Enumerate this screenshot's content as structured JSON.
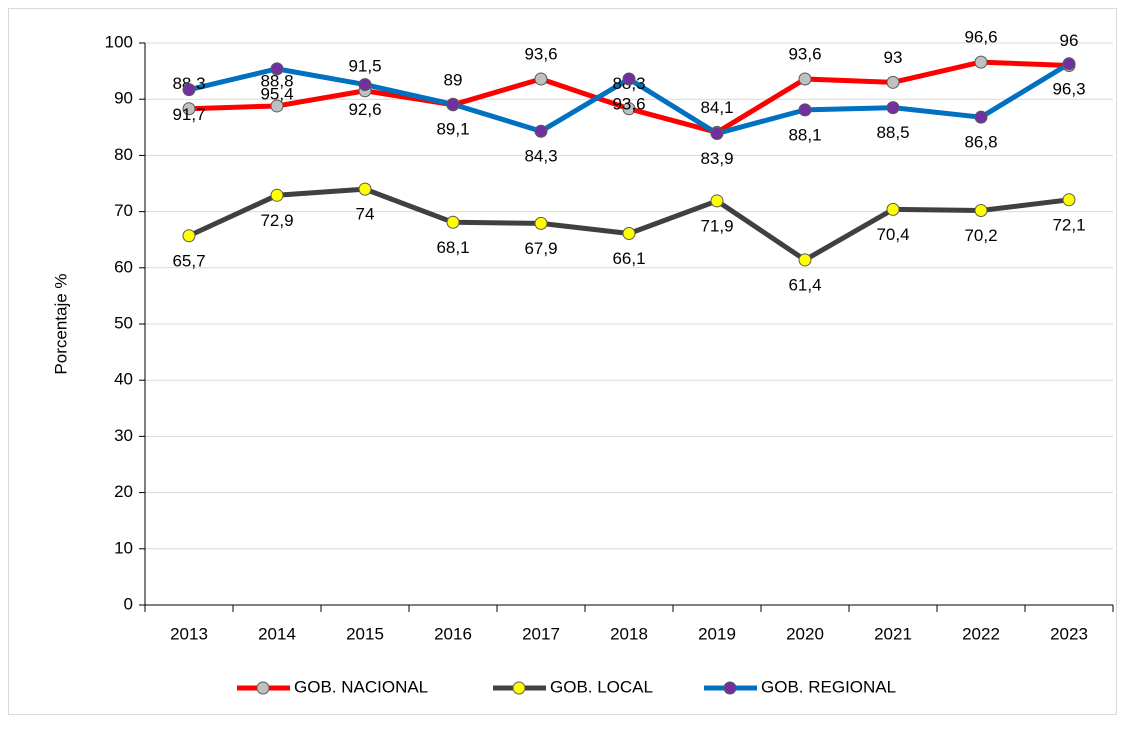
{
  "chart_data": {
    "type": "line",
    "y_label": "Porcentaje %",
    "categories": [
      "2013",
      "2014",
      "2015",
      "2016",
      "2017",
      "2018",
      "2019",
      "2020",
      "2021",
      "2022",
      "2023"
    ],
    "series": [
      {
        "name": "GOB. NACIONAL",
        "color": "#ff0000",
        "marker_color": "#c0c0c0",
        "values": [
          88.3,
          88.8,
          91.5,
          89,
          93.6,
          88.3,
          84.1,
          93.6,
          93,
          96.6,
          96
        ],
        "value_labels": [
          "88,3",
          "88,8",
          "91,5",
          "89",
          "93,6",
          "88,3",
          "84,1",
          "93,6",
          "93",
          "96,6",
          "96"
        ]
      },
      {
        "name": "GOB. LOCAL",
        "color": "#404040",
        "marker_color": "#ffff00",
        "values": [
          65.7,
          72.9,
          74,
          68.1,
          67.9,
          66.1,
          71.9,
          61.4,
          70.4,
          70.2,
          72.1
        ],
        "value_labels": [
          "65,7",
          "72,9",
          "74",
          "68,1",
          "67,9",
          "66,1",
          "71,9",
          "61,4",
          "70,4",
          "70,2",
          "72,1"
        ]
      },
      {
        "name": "GOB. REGIONAL",
        "color": "#0070c0",
        "marker_color": "#7030a0",
        "values": [
          91.7,
          95.4,
          92.6,
          89.1,
          84.3,
          93.6,
          83.9,
          88.1,
          88.5,
          86.8,
          96.3
        ],
        "value_labels": [
          "91,7",
          "95,4",
          "92,6",
          "89,1",
          "84,3",
          "93,6",
          "83,9",
          "88,1",
          "88,5",
          "86,8",
          "96,3"
        ]
      }
    ],
    "ylim": [
      0,
      100
    ],
    "yticks": [
      0,
      10,
      20,
      30,
      40,
      50,
      60,
      70,
      80,
      90,
      100
    ],
    "grid": true,
    "legend": "bottom"
  }
}
